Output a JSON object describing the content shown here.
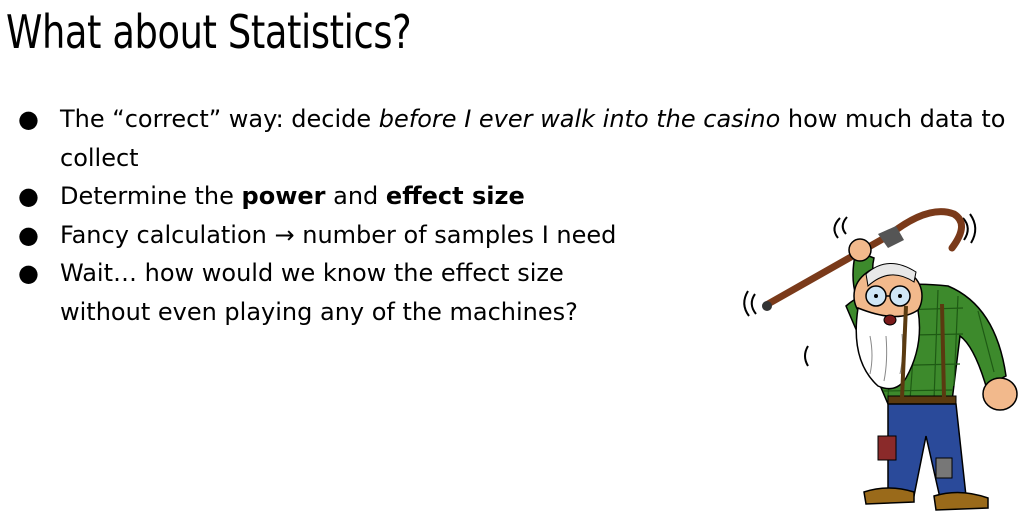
{
  "slide": {
    "title": "What about Statistics?",
    "bullet_symbol": "●",
    "bullets": [
      {
        "pre": "The “correct” way: decide ",
        "em": "before I ever walk into the casino",
        "post": " how much data to collect"
      },
      {
        "pre": "Determine the ",
        "b1": "power",
        "mid": " and ",
        "b2": "effect size"
      },
      {
        "text": "Fancy calculation → number of samples I need"
      },
      {
        "line1": "Wait… how would we know the effect size",
        "line2": "without even playing any of the machines?"
      }
    ]
  },
  "illustration": {
    "name": "angry-old-man-with-cane",
    "colors": {
      "shirt": "#3d8a2c",
      "pants": "#2a4a9a",
      "cane": "#7a3a1a",
      "skin": "#f2b98c",
      "shoes": "#9a6a1a"
    }
  }
}
